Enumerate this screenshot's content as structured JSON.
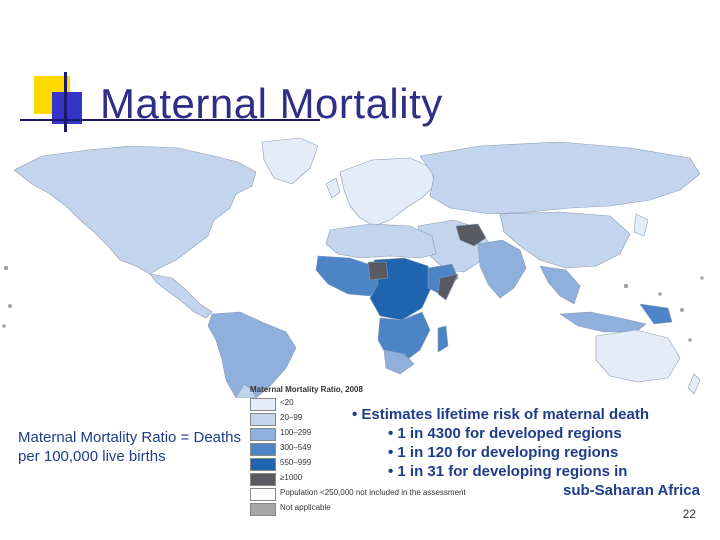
{
  "slide": {
    "title": "Maternal Mortality",
    "page_number": "22"
  },
  "definition_text": "Maternal Mortality Ratio = Deaths per 100,000 live births",
  "legend": {
    "title": "Maternal Mortality Ratio, 2008",
    "items": [
      {
        "label": "<20",
        "color": "#e4ecf7"
      },
      {
        "label": "20–99",
        "color": "#c3d5ec"
      },
      {
        "label": "100–299",
        "color": "#8fb0dc"
      },
      {
        "label": "300–549",
        "color": "#4d84c5"
      },
      {
        "label": "550–999",
        "color": "#1f64ae"
      },
      {
        "label": "≥1000",
        "color": "#5a5a62"
      },
      {
        "label": "Population <250,000 not included in the assessment",
        "color": "#ffffff"
      },
      {
        "label": "Not applicable",
        "color": "#a6a6a6"
      }
    ]
  },
  "bullets": {
    "main": "• Estimates lifetime risk of maternal death",
    "sub": [
      "• 1 in 4300 for developed regions",
      "• 1 in 120 for developing regions",
      "• 1 in 31 for developing regions in"
    ],
    "continuation": "sub-Saharan Africa"
  },
  "colors": {
    "title": "#2e2e86",
    "text": "#1f3d8a",
    "accent_yellow": "#ffd800",
    "accent_blue": "#3434c8"
  }
}
